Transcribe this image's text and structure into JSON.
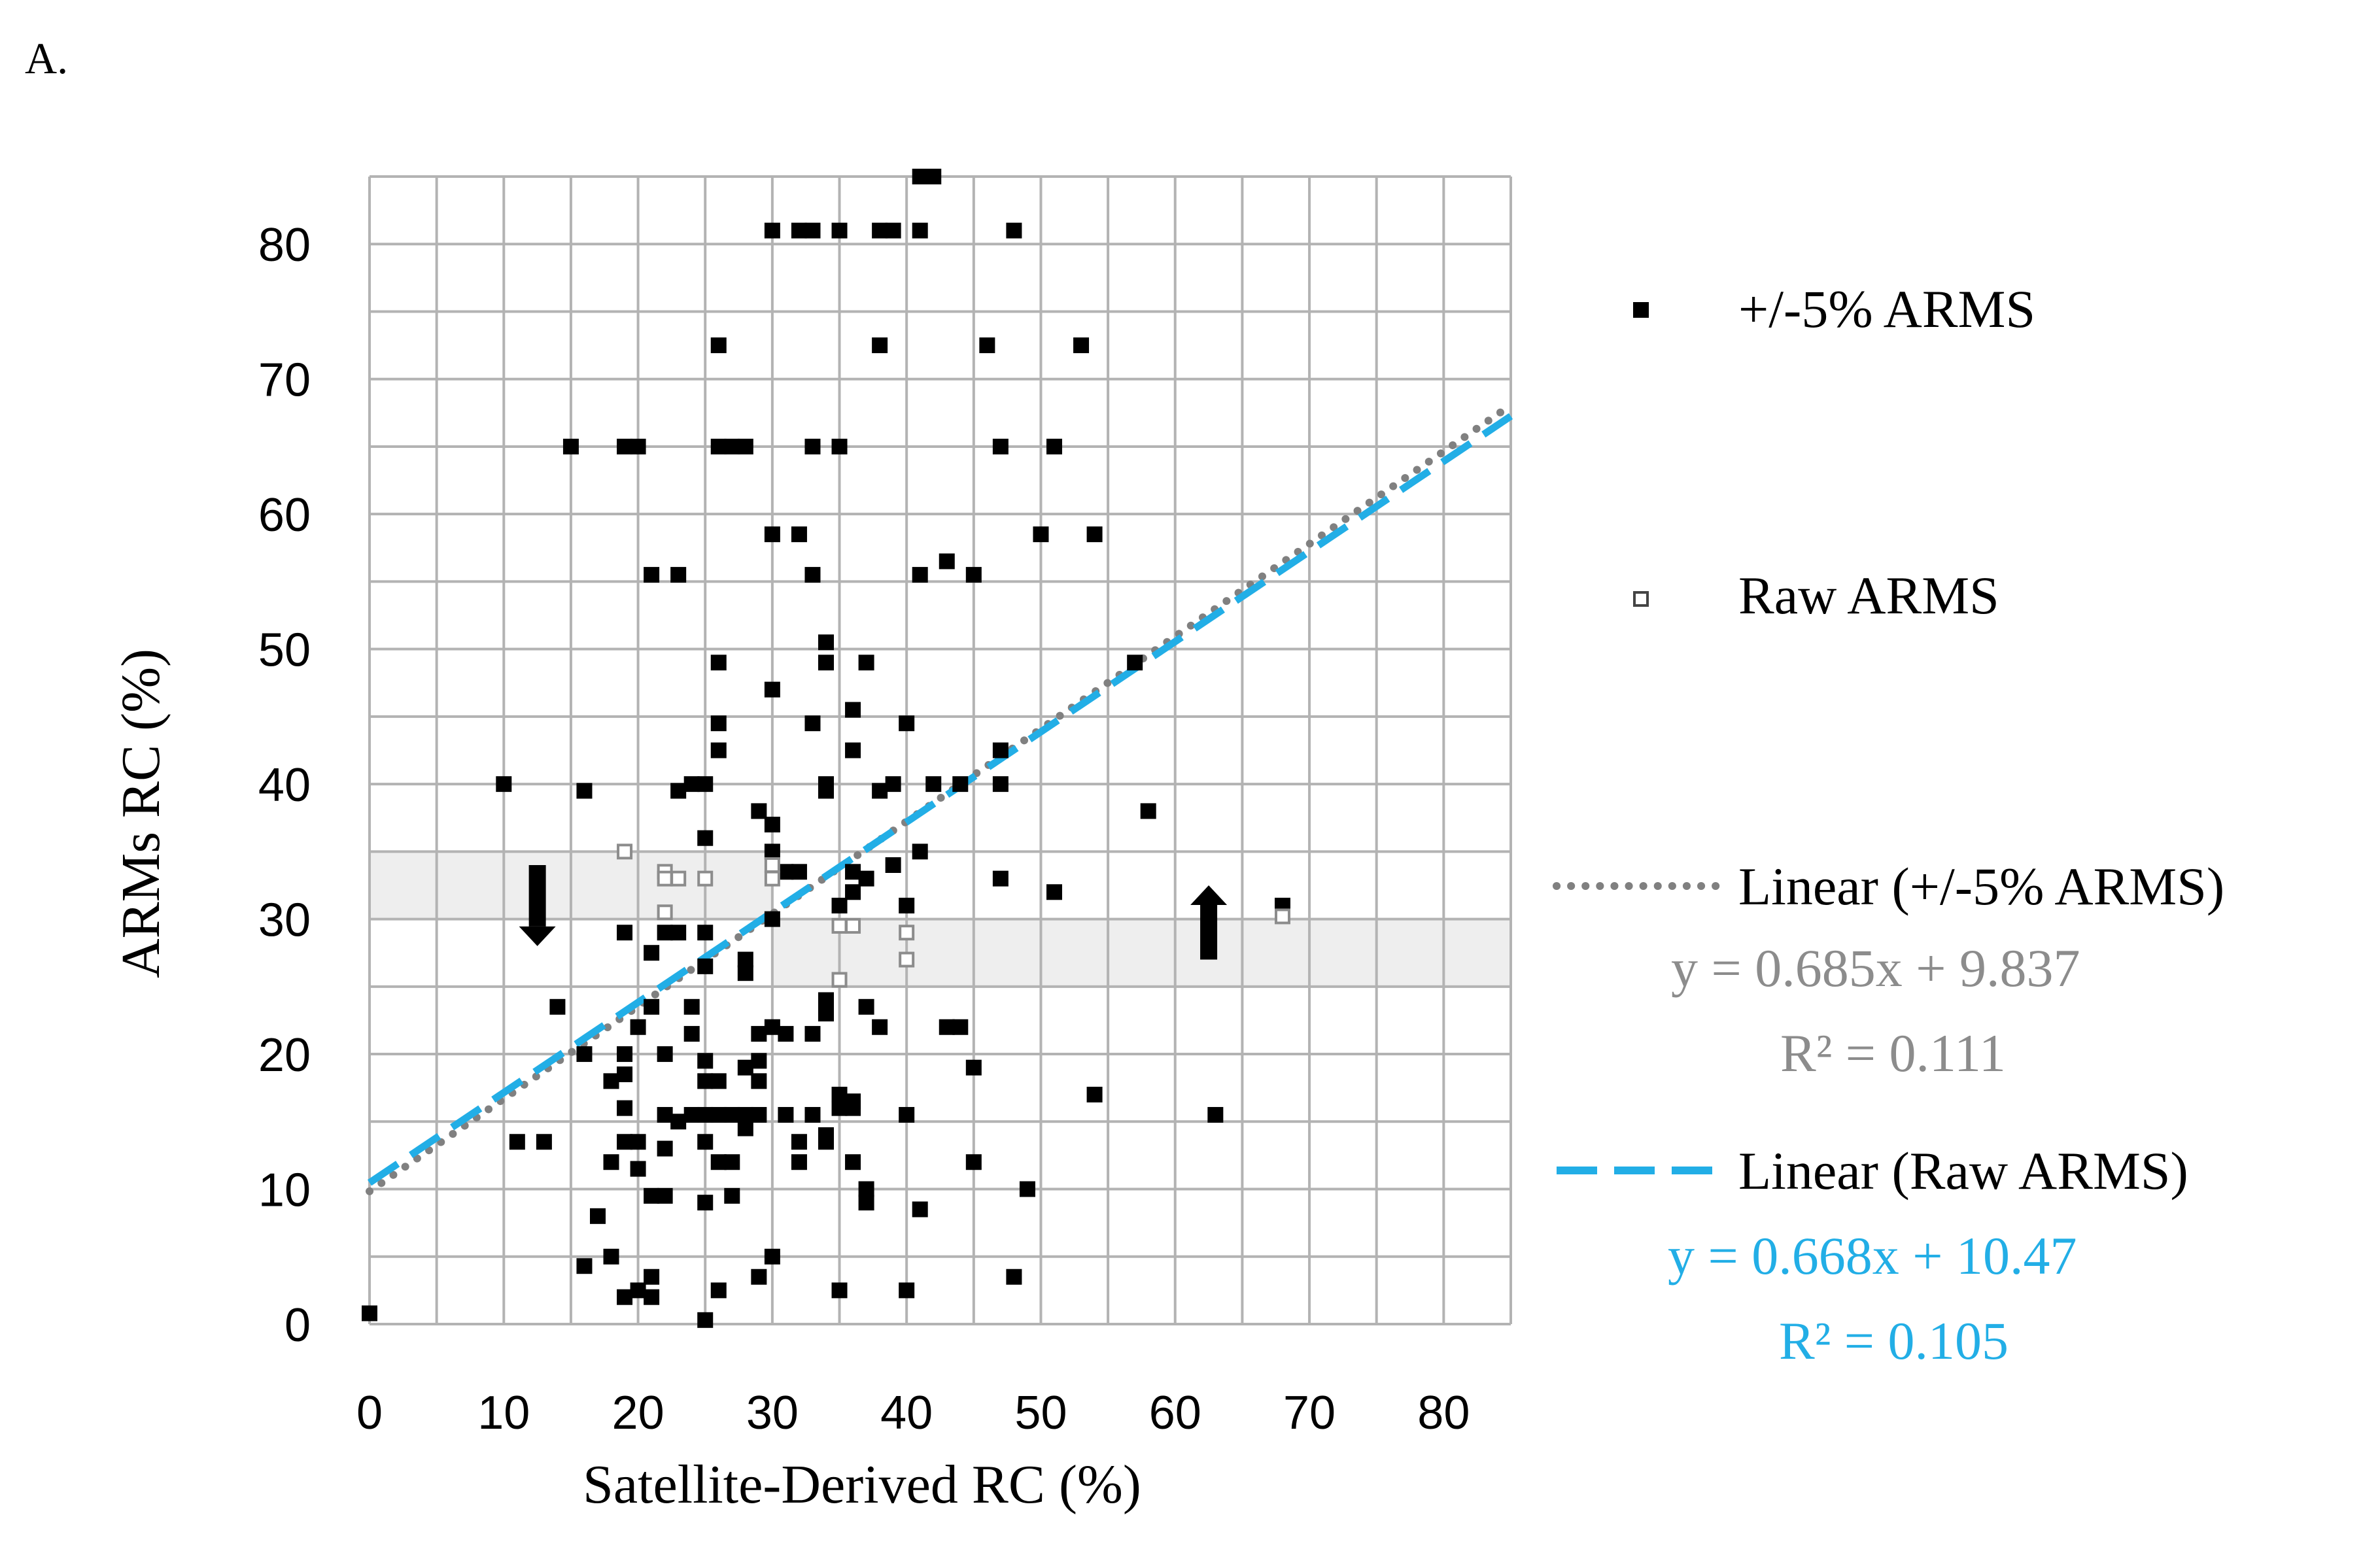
{
  "panel_label": "A.",
  "chart_data": {
    "type": "scatter",
    "xlabel": "Satellite-Derived RC (%)",
    "ylabel": "ARMs RC (%)",
    "xlim": [
      0,
      85
    ],
    "ylim": [
      0,
      85
    ],
    "x_ticks": [
      0,
      10,
      20,
      30,
      40,
      50,
      60,
      70,
      80
    ],
    "y_ticks": [
      0,
      10,
      20,
      30,
      40,
      50,
      60,
      70,
      80
    ],
    "grid": true,
    "grid_step": 5,
    "legend_position": "right",
    "shaded_bands": [
      {
        "x_from": 0,
        "x_to": 30,
        "y_from": 30,
        "y_to": 35
      },
      {
        "x_from": 30,
        "x_to": 85,
        "y_from": 25,
        "y_to": 30
      }
    ],
    "arrows": [
      {
        "x": 12.5,
        "y_from": 34,
        "y_to": 28,
        "direction": "down"
      },
      {
        "x": 62.5,
        "y_from": 27,
        "y_to": 32.5,
        "direction": "up"
      }
    ],
    "series": [
      {
        "name": "+/-5% ARMS",
        "marker": "filled-square",
        "color": "#000000",
        "points": [
          [
            0,
            0.8
          ],
          [
            10,
            40
          ],
          [
            11,
            13.5
          ],
          [
            13,
            13.5
          ],
          [
            14,
            23.5
          ],
          [
            15,
            65
          ],
          [
            16,
            39.5
          ],
          [
            16,
            20
          ],
          [
            16,
            4.3
          ],
          [
            17,
            8
          ],
          [
            18,
            12
          ],
          [
            18,
            5
          ],
          [
            18,
            18
          ],
          [
            19,
            65
          ],
          [
            19,
            20
          ],
          [
            19,
            18.5
          ],
          [
            19,
            16
          ],
          [
            19,
            13.5
          ],
          [
            19,
            29
          ],
          [
            19,
            2
          ],
          [
            20,
            65
          ],
          [
            20,
            13.5
          ],
          [
            20,
            11.5
          ],
          [
            20,
            2.5
          ],
          [
            20,
            22
          ],
          [
            21,
            27.5
          ],
          [
            21,
            9.5
          ],
          [
            21,
            3.5
          ],
          [
            21,
            55.5
          ],
          [
            21,
            23.5
          ],
          [
            21,
            2
          ],
          [
            22,
            29
          ],
          [
            22,
            20
          ],
          [
            22,
            15.5
          ],
          [
            22,
            13
          ],
          [
            22,
            9.5
          ],
          [
            23,
            55.5
          ],
          [
            23,
            29
          ],
          [
            23,
            39.5
          ],
          [
            23,
            15
          ],
          [
            24,
            40
          ],
          [
            24,
            23.5
          ],
          [
            24,
            21.5
          ],
          [
            24,
            15.5
          ],
          [
            25,
            40
          ],
          [
            25,
            36
          ],
          [
            25,
            29
          ],
          [
            25,
            26.5
          ],
          [
            25,
            19.5
          ],
          [
            25,
            18
          ],
          [
            25,
            15.5
          ],
          [
            25,
            13.5
          ],
          [
            25,
            9
          ],
          [
            25,
            0.3
          ],
          [
            26,
            72.5
          ],
          [
            26,
            65
          ],
          [
            26,
            49
          ],
          [
            26,
            44.5
          ],
          [
            26,
            42.5
          ],
          [
            26,
            18
          ],
          [
            26,
            15.5
          ],
          [
            26,
            12
          ],
          [
            26,
            2.5
          ],
          [
            27,
            65
          ],
          [
            27,
            15.5
          ],
          [
            27,
            12
          ],
          [
            27,
            9.5
          ],
          [
            28,
            65
          ],
          [
            28,
            27
          ],
          [
            28,
            26
          ],
          [
            28,
            19
          ],
          [
            28,
            15.5
          ],
          [
            28,
            14.5
          ],
          [
            29,
            38
          ],
          [
            29,
            21.5
          ],
          [
            29,
            19.5
          ],
          [
            29,
            18
          ],
          [
            29,
            15.5
          ],
          [
            29,
            3.5
          ],
          [
            30,
            81
          ],
          [
            30,
            58.5
          ],
          [
            30,
            47
          ],
          [
            30,
            37
          ],
          [
            30,
            35
          ],
          [
            30,
            22
          ],
          [
            30,
            30
          ],
          [
            30,
            5
          ],
          [
            31,
            33.5
          ],
          [
            31,
            21.5
          ],
          [
            31,
            15.5
          ],
          [
            32,
            81
          ],
          [
            32,
            58.5
          ],
          [
            32,
            33.5
          ],
          [
            32,
            13.5
          ],
          [
            32,
            12
          ],
          [
            33,
            81
          ],
          [
            33,
            65
          ],
          [
            33,
            55.5
          ],
          [
            33,
            44.5
          ],
          [
            33,
            21.5
          ],
          [
            33,
            15.5
          ],
          [
            34,
            50.5
          ],
          [
            34,
            49
          ],
          [
            34,
            40
          ],
          [
            34,
            39.5
          ],
          [
            34,
            24
          ],
          [
            34,
            23
          ],
          [
            34,
            14
          ],
          [
            34,
            13.5
          ],
          [
            35,
            81
          ],
          [
            35,
            65
          ],
          [
            35,
            31
          ],
          [
            35,
            17
          ],
          [
            35,
            16
          ],
          [
            35,
            2.5
          ],
          [
            36,
            45.5
          ],
          [
            36,
            42.5
          ],
          [
            36,
            33.5
          ],
          [
            36,
            32
          ],
          [
            36,
            16.5
          ],
          [
            36,
            16
          ],
          [
            36,
            12
          ],
          [
            37,
            49
          ],
          [
            37,
            33
          ],
          [
            37,
            23.5
          ],
          [
            37,
            10
          ],
          [
            37,
            9
          ],
          [
            38,
            81
          ],
          [
            38,
            72.5
          ],
          [
            38,
            39.5
          ],
          [
            38,
            22
          ],
          [
            39,
            81
          ],
          [
            39,
            40
          ],
          [
            39,
            34
          ],
          [
            40,
            44.5
          ],
          [
            40,
            31
          ],
          [
            40,
            15.5
          ],
          [
            40,
            2.5
          ],
          [
            41,
            85
          ],
          [
            41,
            81
          ],
          [
            41,
            55.5
          ],
          [
            41,
            35
          ],
          [
            41,
            8.5
          ],
          [
            42,
            85
          ],
          [
            42,
            40
          ],
          [
            43,
            56.5
          ],
          [
            43,
            22
          ],
          [
            44,
            40
          ],
          [
            44,
            22
          ],
          [
            45,
            55.5
          ],
          [
            45,
            19
          ],
          [
            45,
            12
          ],
          [
            46,
            72.5
          ],
          [
            47,
            65
          ],
          [
            47,
            42.5
          ],
          [
            47,
            40
          ],
          [
            47,
            33
          ],
          [
            48,
            81
          ],
          [
            48,
            3.5
          ],
          [
            49,
            10
          ],
          [
            50,
            58.5
          ],
          [
            51,
            65
          ],
          [
            51,
            32
          ],
          [
            53,
            72.5
          ],
          [
            54,
            58.5
          ],
          [
            54,
            17
          ],
          [
            57,
            49
          ],
          [
            58,
            38
          ],
          [
            63,
            15.5
          ],
          [
            68,
            31
          ]
        ]
      },
      {
        "name": "Raw ARMS",
        "marker": "hollow-square",
        "color": "#8c8c8c",
        "points": [
          [
            19,
            35
          ],
          [
            22,
            33.5
          ],
          [
            22,
            33
          ],
          [
            22,
            30.5
          ],
          [
            23,
            33
          ],
          [
            25,
            33
          ],
          [
            30,
            34
          ],
          [
            30,
            33
          ],
          [
            35,
            29.5
          ],
          [
            35,
            25.5
          ],
          [
            36,
            29.5
          ],
          [
            40,
            29
          ],
          [
            40,
            27
          ],
          [
            68,
            30.2
          ]
        ]
      }
    ],
    "trendlines": [
      {
        "name": "Linear (+/-5% ARMS)",
        "equation": "y = 0.685x + 9.837",
        "r2": "R² = 0.111",
        "slope": 0.685,
        "intercept": 9.837,
        "style": "dotted",
        "color": "#808080"
      },
      {
        "name": "Linear (Raw ARMS)",
        "equation": "y = 0.668x + 10.47",
        "r2": "R² = 0.105",
        "slope": 0.668,
        "intercept": 10.47,
        "style": "dashed",
        "color": "#22aee6"
      }
    ]
  },
  "legend": {
    "filled_label": "+/-5% ARMS",
    "hollow_label": "Raw ARMS",
    "linear1_label": "Linear (+/-5% ARMS)",
    "linear1_eq": "y = 0.685x + 9.837",
    "linear1_r2": "R² = 0.111",
    "linear2_label": "Linear (Raw ARMS)",
    "linear2_eq": "y = 0.668x + 10.47",
    "linear2_r2": "R² = 0.105"
  }
}
